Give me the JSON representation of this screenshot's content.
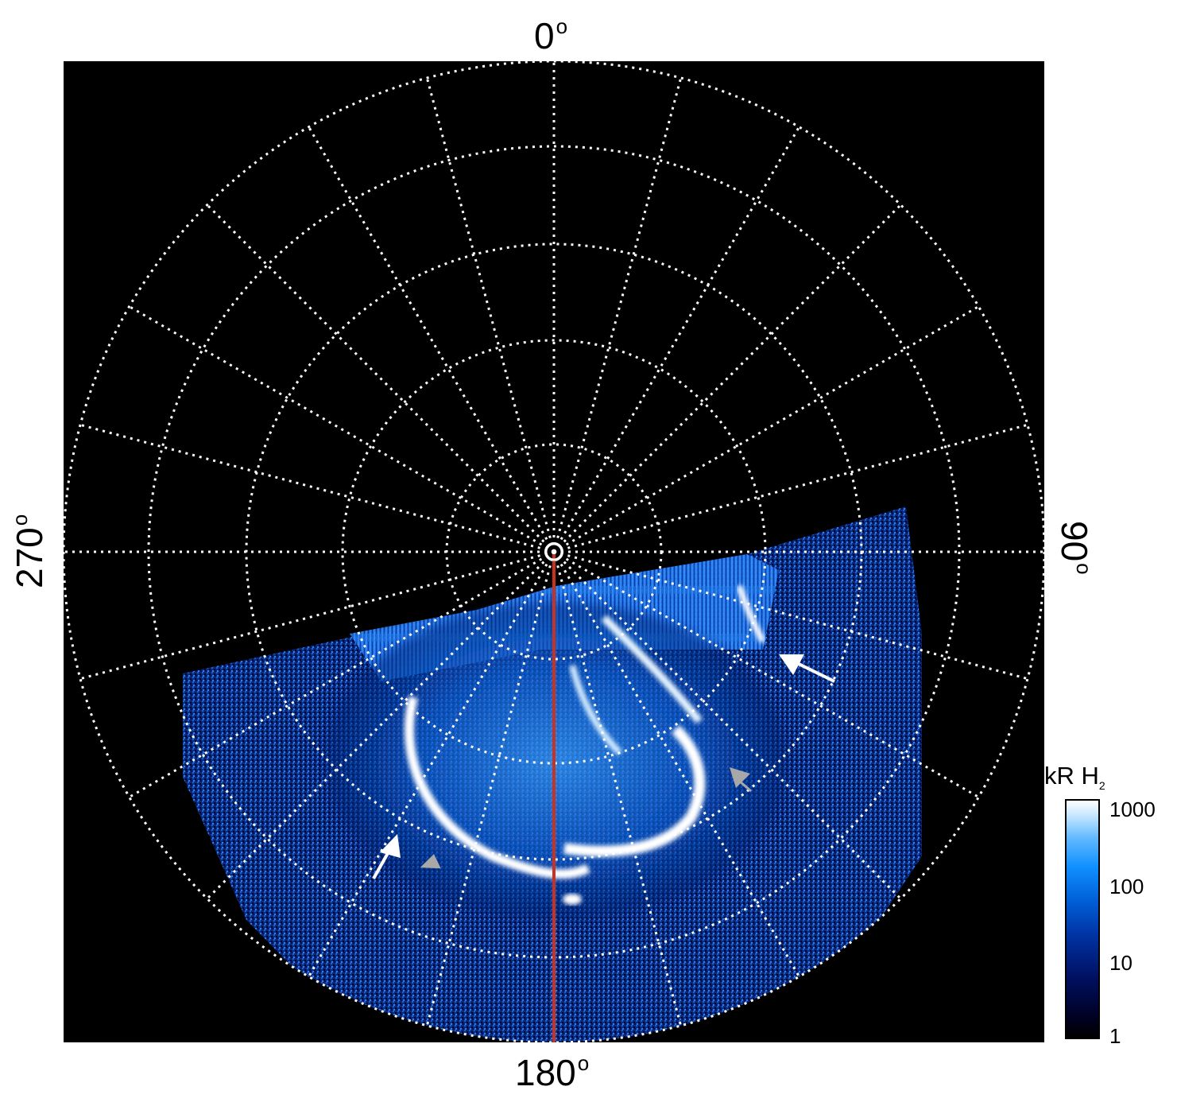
{
  "labels": {
    "top": "0",
    "bottom": "180",
    "left": "270",
    "right": "90",
    "degree_symbol": "o"
  },
  "colorbar": {
    "title_main": "kR H",
    "title_sub": "2",
    "ticks": [
      "1000",
      "100",
      "10",
      "1"
    ],
    "scale": "log"
  },
  "colors": {
    "background": "#000000",
    "grid": "#ffffff",
    "meridian_line": "#c8321e",
    "emission_low": "#001060",
    "emission_mid": "#1090ff",
    "emission_high": "#ffffff",
    "arrow_white": "#ffffff",
    "arrow_gray": "#a8a8a8"
  },
  "arrows": [
    {
      "color": "white",
      "count": 2
    },
    {
      "color": "gray",
      "count": 2
    }
  ]
}
